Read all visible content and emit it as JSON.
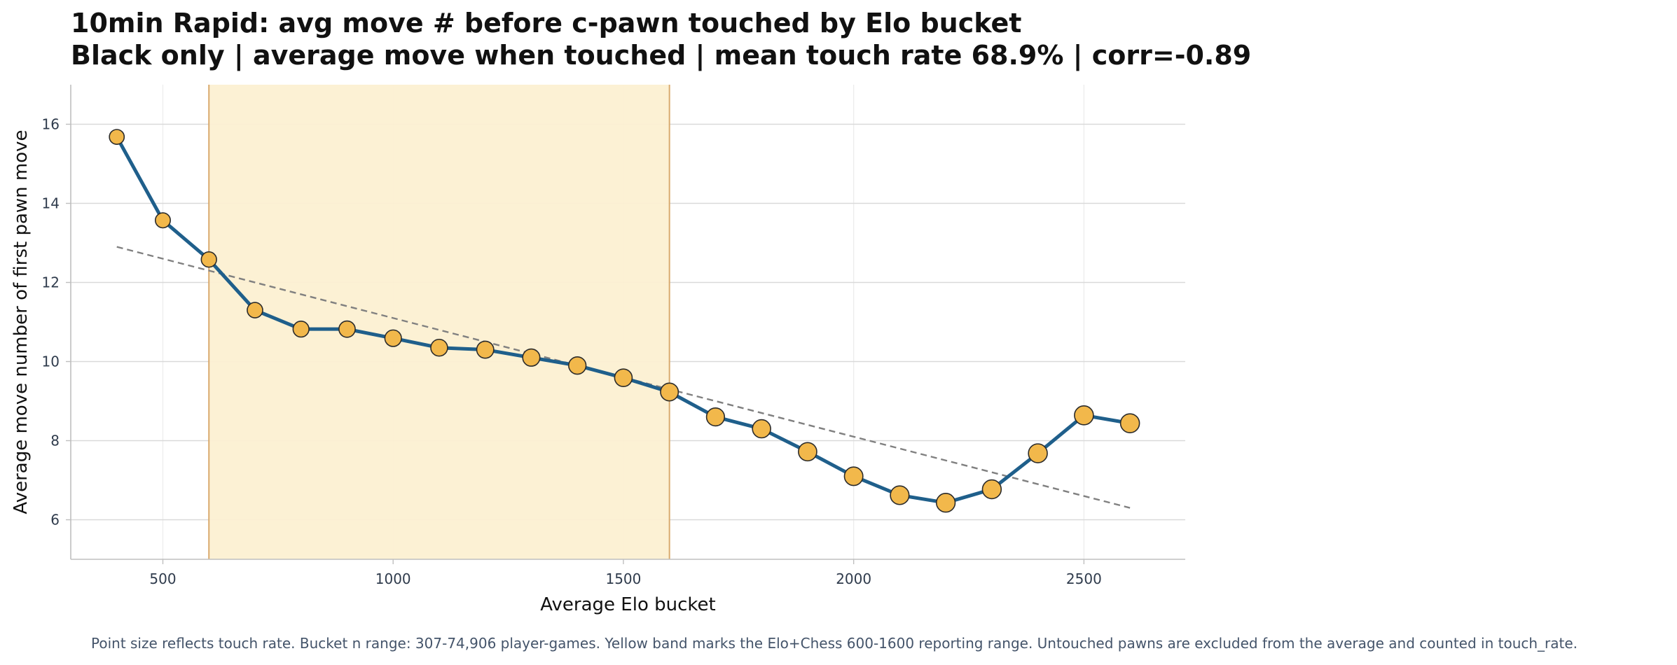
{
  "title_line1": "10min Rapid: avg move # before c-pawn touched by Elo bucket",
  "title_line2": "Black only | average move when touched | mean touch rate 68.9% | corr=-0.89",
  "footnote": "Point size reflects touch rate. Bucket n range: 307-74,906 player-games. Yellow band marks the Elo+Chess 600-1600 reporting range. Untouched pawns are excluded from the average and counted in touch_rate.",
  "colors": {
    "line": "#1f5f8b",
    "marker_fill": "#f2b84b",
    "marker_edge": "#2b2b2b",
    "band_fill": "#fcf0d2",
    "band_edge": "#d9aa6e",
    "trend": "#808080",
    "grid": "#d9d9d9",
    "axis": "#bfbfbf",
    "tick_text": "#2f3b4c"
  },
  "chart_data": {
    "type": "line",
    "xlabel": "Average Elo bucket",
    "ylabel": "Average move number of first pawn move",
    "xlim": [
      300,
      2720
    ],
    "ylim": [
      5,
      17
    ],
    "xticks": [
      500,
      1000,
      1500,
      2000,
      2500
    ],
    "yticks": [
      6,
      8,
      10,
      12,
      14,
      16
    ],
    "grid": true,
    "highlight_band": [
      600,
      1600
    ],
    "x": [
      400,
      500,
      600,
      700,
      800,
      900,
      1000,
      1100,
      1200,
      1300,
      1400,
      1500,
      1600,
      1700,
      1800,
      1900,
      2000,
      2100,
      2200,
      2300,
      2400,
      2500,
      2600
    ],
    "y": [
      15.68,
      13.57,
      12.58,
      11.3,
      10.82,
      10.82,
      10.59,
      10.35,
      10.3,
      10.1,
      9.9,
      9.59,
      9.23,
      8.6,
      8.3,
      7.72,
      7.1,
      6.62,
      6.43,
      6.77,
      7.68,
      8.64,
      8.44
    ],
    "touch_rate_relative": [
      0.35,
      0.38,
      0.42,
      0.45,
      0.52,
      0.58,
      0.62,
      0.66,
      0.7,
      0.72,
      0.75,
      0.78,
      0.82,
      0.85,
      0.88,
      0.9,
      0.93,
      0.95,
      0.97,
      0.98,
      0.99,
      1.0,
      1.0
    ],
    "trendline": {
      "x": [
        400,
        2600
      ],
      "y": [
        12.9,
        6.3
      ],
      "style": "dashed"
    }
  }
}
